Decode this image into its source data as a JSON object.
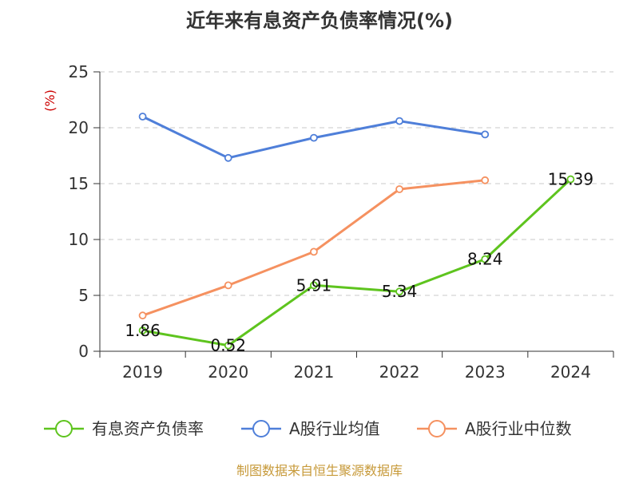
{
  "title": "近年来有息资产负债率情况(%)",
  "source": "制图数据来自恒生聚源数据库",
  "chart_data": {
    "type": "line",
    "title": "近年来有息资产负债率情况(%)",
    "ylabel": "(%)",
    "categories": [
      "2019",
      "2020",
      "2021",
      "2022",
      "2023",
      "2024"
    ],
    "yticks": [
      "0",
      "5",
      "10",
      "15",
      "20",
      "25"
    ],
    "ylim": [
      0,
      25
    ],
    "grid": "horizontal dashed",
    "legend": "bottom",
    "series": [
      {
        "name": "有息资产负债率",
        "color": "#5ec41e",
        "values": [
          1.86,
          0.52,
          5.91,
          5.34,
          8.24,
          15.39
        ],
        "labels": [
          "1.86",
          "0.52",
          "5.91",
          "5.34",
          "8.24",
          "15.39"
        ]
      },
      {
        "name": "A股行业均值",
        "color": "#4f7fd9",
        "values": [
          21.0,
          17.3,
          19.1,
          20.6,
          19.4,
          null
        ]
      },
      {
        "name": "A股行业中位数",
        "color": "#f59160",
        "values": [
          3.2,
          5.9,
          8.9,
          14.5,
          15.3,
          null
        ]
      }
    ]
  }
}
